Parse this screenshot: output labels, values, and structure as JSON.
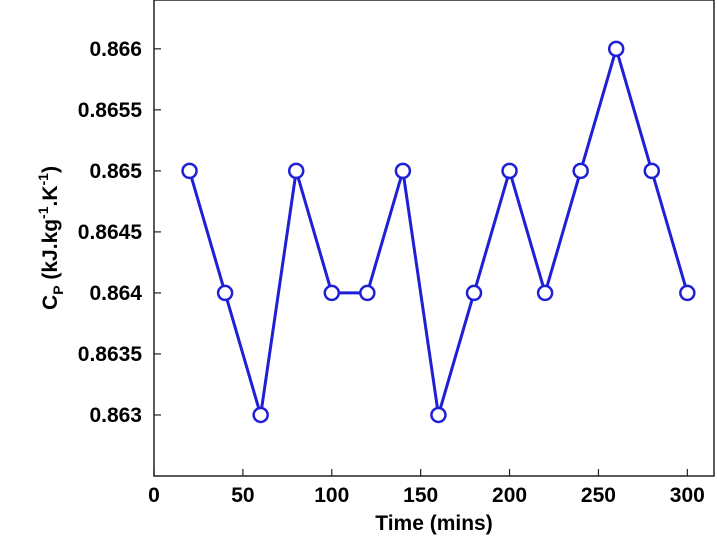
{
  "chart_data": {
    "type": "line",
    "xlabel": "Time (mins)",
    "ylabel": {
      "main": "C",
      "main_sub": "P",
      "unit_a": " (kJ.kg",
      "unit_a_sup": "-1",
      "unit_b": ".K",
      "unit_b_sup": "-1",
      "unit_c": ")"
    },
    "xlim": [
      0,
      315
    ],
    "ylim": [
      0.8625,
      0.8664
    ],
    "xticks": [
      0,
      50,
      100,
      150,
      200,
      250,
      300
    ],
    "xtick_labels": [
      "0",
      "50",
      "100",
      "150",
      "200",
      "250",
      "300"
    ],
    "yticks": [
      0.863,
      0.8635,
      0.864,
      0.8645,
      0.865,
      0.8655,
      0.866
    ],
    "ytick_labels": [
      "0.863",
      "0.8635",
      "0.864",
      "0.8645",
      "0.865",
      "0.8655",
      "0.866"
    ],
    "grid": false,
    "series": [
      {
        "color": "#1f1fd6",
        "marker": "circle",
        "x": [
          20,
          40,
          60,
          80,
          100,
          120,
          140,
          160,
          180,
          200,
          220,
          240,
          260,
          280,
          300
        ],
        "y": [
          0.865,
          0.864,
          0.863,
          0.865,
          0.864,
          0.864,
          0.865,
          0.863,
          0.864,
          0.865,
          0.864,
          0.865,
          0.866,
          0.865,
          0.864
        ]
      }
    ]
  }
}
